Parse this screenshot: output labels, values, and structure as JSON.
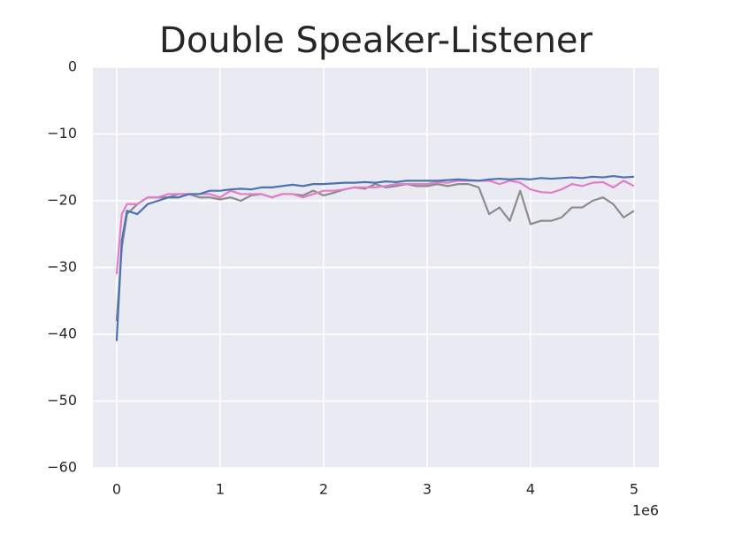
{
  "chart_data": {
    "type": "line",
    "title": "Double Speaker-Listener",
    "x": [
      0,
      0.05,
      0.1,
      0.2,
      0.3,
      0.4,
      0.5,
      0.6,
      0.7,
      0.8,
      0.9,
      1.0,
      1.1,
      1.2,
      1.3,
      1.4,
      1.5,
      1.6,
      1.7,
      1.8,
      1.9,
      2.0,
      2.1,
      2.2,
      2.3,
      2.4,
      2.5,
      2.6,
      2.7,
      2.8,
      2.9,
      3.0,
      3.1,
      3.2,
      3.3,
      3.4,
      3.5,
      3.6,
      3.7,
      3.8,
      3.9,
      4.0,
      4.1,
      4.2,
      4.3,
      4.4,
      4.5,
      4.6,
      4.7,
      4.8,
      4.9,
      5.0
    ],
    "x_offset_label": "1e6",
    "series": [
      {
        "color": "#8c8c8c",
        "values": [
          -38,
          -27,
          -22,
          -20.5,
          -19.5,
          -19.5,
          -19.5,
          -19,
          -19,
          -19.5,
          -19.5,
          -19.8,
          -19.5,
          -20,
          -19.2,
          -19,
          -19.5,
          -19,
          -19,
          -19.2,
          -18.5,
          -19.2,
          -18.8,
          -18.3,
          -18,
          -18.2,
          -17.5,
          -18,
          -17.8,
          -17.5,
          -17.8,
          -17.8,
          -17.5,
          -17.8,
          -17.5,
          -17.5,
          -18,
          -22,
          -21,
          -23,
          -18.5,
          -23.5,
          -23,
          -23,
          -22.5,
          -21,
          -21,
          -20,
          -19.5,
          -20.5,
          -22.5,
          -21.5
        ]
      },
      {
        "color": "#e07ec8",
        "values": [
          -31,
          -22,
          -20.5,
          -20.5,
          -19.5,
          -19.5,
          -19,
          -19,
          -19,
          -19,
          -19,
          -19.5,
          -18.5,
          -19,
          -19,
          -19,
          -19.5,
          -19,
          -19,
          -19.5,
          -19,
          -18.5,
          -18.5,
          -18.3,
          -18,
          -18,
          -18,
          -17.8,
          -17.5,
          -17.5,
          -17.5,
          -17.5,
          -17.2,
          -17.3,
          -17,
          -17,
          -17,
          -17,
          -17.5,
          -17,
          -17.3,
          -18.3,
          -18.7,
          -18.8,
          -18.3,
          -17.5,
          -17.8,
          -17.3,
          -17.2,
          -18,
          -17,
          -17.8
        ]
      },
      {
        "color": "#4c72b0",
        "values": [
          -41,
          -26,
          -21.5,
          -22,
          -20.5,
          -20,
          -19.5,
          -19.5,
          -19,
          -19,
          -18.5,
          -18.5,
          -18.3,
          -18.2,
          -18.3,
          -18,
          -18,
          -17.8,
          -17.6,
          -17.8,
          -17.5,
          -17.5,
          -17.4,
          -17.3,
          -17.3,
          -17.2,
          -17.3,
          -17.1,
          -17.2,
          -17,
          -17,
          -17,
          -17,
          -16.9,
          -16.8,
          -16.9,
          -17,
          -16.8,
          -16.7,
          -16.8,
          -16.7,
          -16.8,
          -16.6,
          -16.7,
          -16.6,
          -16.5,
          -16.6,
          -16.4,
          -16.5,
          -16.3,
          -16.5,
          -16.4
        ]
      }
    ],
    "xlim": [
      -0.23,
      5.24
    ],
    "xticks": [
      0,
      1,
      2,
      3,
      4,
      5
    ],
    "ylim": [
      -60,
      0
    ],
    "yticks": [
      {
        "value": -60,
        "label": "−60"
      },
      {
        "value": -50,
        "label": "−50"
      },
      {
        "value": -40,
        "label": "−40"
      },
      {
        "value": -30,
        "label": "−30"
      },
      {
        "value": -20,
        "label": "−20"
      },
      {
        "value": -10,
        "label": "−10"
      },
      0
    ],
    "grid": true
  }
}
